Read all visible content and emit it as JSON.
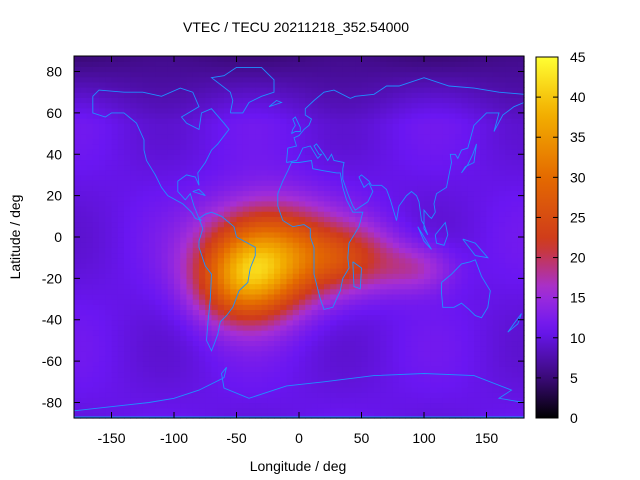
{
  "chart_data": {
    "type": "heatmap",
    "title": "VTEC / TECU 20211218_352.54000",
    "xlabel": "Longitude / deg",
    "ylabel": "Latitude / deg",
    "xlim": [
      -180,
      180
    ],
    "ylim": [
      -87.5,
      87.5
    ],
    "xticks": [
      -150,
      -100,
      -50,
      0,
      50,
      100,
      150
    ],
    "yticks": [
      -80,
      -60,
      -40,
      -20,
      0,
      20,
      40,
      60,
      80
    ],
    "colorbar": {
      "range": [
        0,
        45
      ],
      "ticks": [
        0,
        5,
        10,
        15,
        20,
        25,
        30,
        35,
        40,
        45
      ],
      "stops": [
        {
          "value": 0,
          "color": "#000000"
        },
        {
          "value": 5,
          "color": "#3b0a78"
        },
        {
          "value": 11,
          "color": "#6a16f2"
        },
        {
          "value": 16,
          "color": "#a52fd6"
        },
        {
          "value": 22,
          "color": "#cf3a1c"
        },
        {
          "value": 30,
          "color": "#e46a00"
        },
        {
          "value": 38,
          "color": "#f3b000"
        },
        {
          "value": 45,
          "color": "#ffff33"
        }
      ]
    },
    "background_value": 10.5,
    "anomaly": {
      "description": "equatorial ionization enhancement over South America and the Atlantic",
      "components": [
        {
          "lon": -25,
          "lat": -8,
          "peak": 22,
          "lon_width": 48,
          "lat_width": 24
        },
        {
          "lon": -45,
          "lat": -22,
          "peak": 15,
          "lon_width": 38,
          "lat_width": 20
        },
        {
          "lon": 40,
          "lat": -10,
          "peak": 10,
          "lon_width": 40,
          "lat_width": 16
        },
        {
          "lon": 95,
          "lat": -15,
          "peak": 6,
          "lon_width": 30,
          "lat_width": 12
        }
      ],
      "polar_minimum": {
        "value": 5,
        "region": "northern high latitudes"
      }
    },
    "map_overlay": "coastlines",
    "coastline_color": "#1e90ff"
  }
}
